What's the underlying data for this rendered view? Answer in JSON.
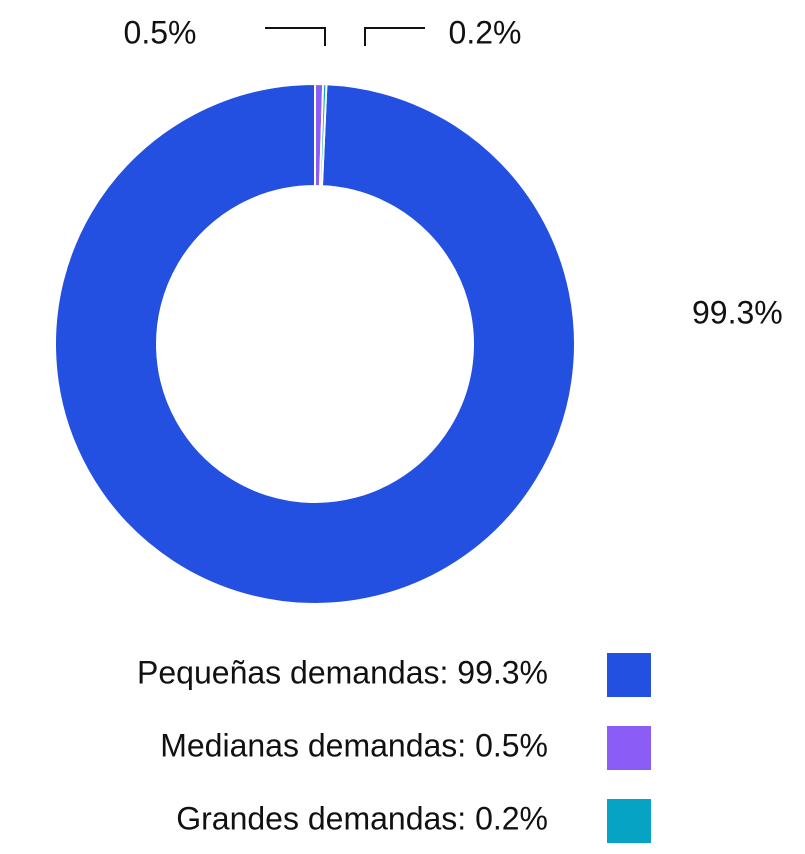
{
  "chart_data": {
    "type": "donut",
    "categories": [
      "Pequeñas demandas: 99.3%",
      "Medianas demandas: 0.5%",
      "Grandes demandas: 0.2%"
    ],
    "values": [
      99.3,
      0.5,
      0.2
    ],
    "value_labels": [
      "99.3%",
      "0.5%",
      "0.2%"
    ],
    "colors": [
      "#2350e0",
      "#8b5cf6",
      "#06a3c4"
    ],
    "legend": "bottom"
  }
}
